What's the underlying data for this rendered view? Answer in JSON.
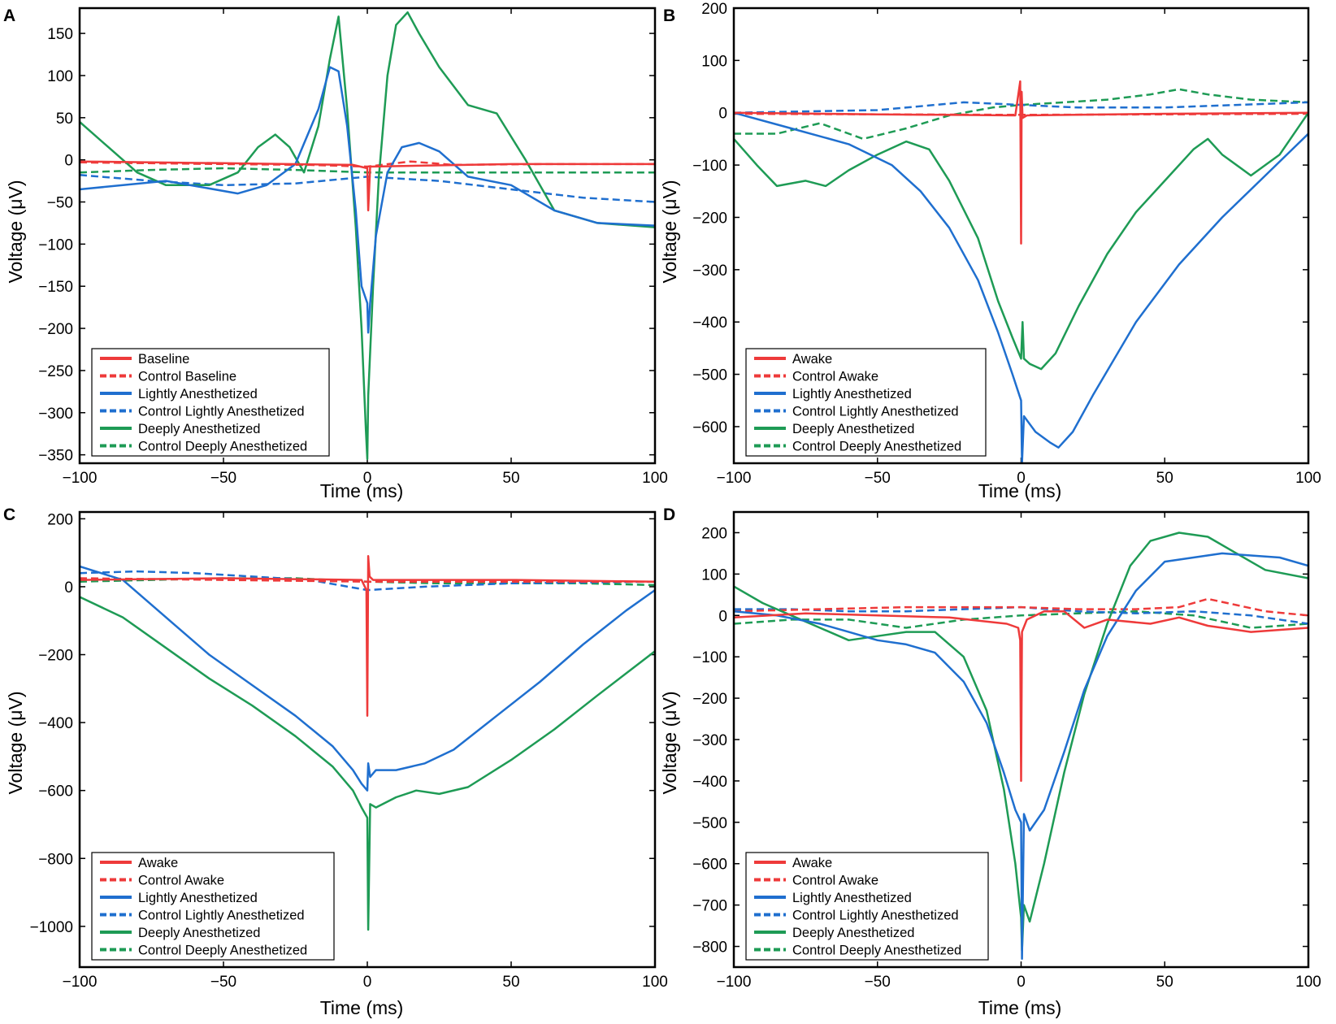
{
  "figure": {
    "colors": {
      "red": "#ee3a3a",
      "blue": "#1f6fcf",
      "green": "#1e9b55"
    },
    "style_map": {
      "Baseline": [
        "red",
        "solid"
      ],
      "Control Baseline": [
        "red",
        "dashed"
      ],
      "Awake": [
        "red",
        "solid"
      ],
      "Control Awake": [
        "red",
        "dashed"
      ],
      "Lightly Anesthetized": [
        "blue",
        "solid"
      ],
      "Control Lightly Anesthetized": [
        "blue",
        "dashed"
      ],
      "Deeply Anesthetized": [
        "green",
        "solid"
      ],
      "Control Deeply Anesthetized": [
        "green",
        "dashed"
      ]
    }
  },
  "chart_data": [
    {
      "panel": "A",
      "type": "line",
      "xlabel": "Time (ms)",
      "ylabel": "Voltage (μV)",
      "xlim": [
        -100,
        100
      ],
      "ylim": [
        -360,
        180
      ],
      "xticks": [
        -100,
        -50,
        0,
        50,
        100
      ],
      "yticks": [
        -350,
        -300,
        -250,
        -200,
        -150,
        -100,
        -50,
        0,
        50,
        100,
        150
      ],
      "legend": [
        "Baseline",
        "Control Baseline",
        "Lightly Anesthetized",
        "Control Lightly Anesthetized",
        "Deeply Anesthetized",
        "Control Deeply Anesthetized"
      ],
      "series": [
        {
          "name": "Baseline",
          "x": [
            -100,
            -50,
            -5,
            0,
            0.3,
            1,
            50,
            100
          ],
          "y": [
            -2,
            -4,
            -6,
            -10,
            -60,
            -8,
            -5,
            -5
          ]
        },
        {
          "name": "Control Baseline",
          "x": [
            -100,
            -50,
            -20,
            0,
            15,
            30,
            60,
            100
          ],
          "y": [
            -3,
            -5,
            -6,
            -8,
            -2,
            -6,
            -5,
            -5
          ]
        },
        {
          "name": "Lightly Anesthetized",
          "x": [
            -100,
            -70,
            -45,
            -35,
            -25,
            -17,
            -13,
            -10,
            -7,
            -4,
            -2,
            0,
            0.3,
            1,
            3,
            7,
            12,
            18,
            25,
            35,
            50,
            65,
            80,
            100
          ],
          "y": [
            -35,
            -25,
            -40,
            -30,
            -5,
            60,
            110,
            105,
            40,
            -60,
            -150,
            -170,
            -205,
            -170,
            -90,
            -15,
            15,
            20,
            10,
            -20,
            -30,
            -60,
            -75,
            -78
          ]
        },
        {
          "name": "Control Lightly Anesthetized",
          "x": [
            -100,
            -75,
            -50,
            -25,
            0,
            25,
            50,
            75,
            100
          ],
          "y": [
            -18,
            -25,
            -30,
            -28,
            -20,
            -25,
            -35,
            -45,
            -50
          ]
        },
        {
          "name": "Deeply Anesthetized",
          "x": [
            -100,
            -90,
            -80,
            -70,
            -55,
            -45,
            -38,
            -32,
            -27,
            -22,
            -17,
            -13,
            -10,
            -7,
            -4,
            -2,
            -0.5,
            0,
            0.3,
            2,
            4,
            7,
            10,
            14,
            18,
            25,
            35,
            45,
            55,
            65,
            80,
            100
          ],
          "y": [
            45,
            15,
            -15,
            -30,
            -30,
            -15,
            15,
            30,
            15,
            -15,
            40,
            120,
            170,
            60,
            -80,
            -200,
            -320,
            -355,
            -280,
            -150,
            -20,
            100,
            160,
            175,
            150,
            110,
            65,
            55,
            0,
            -60,
            -75,
            -80
          ]
        },
        {
          "name": "Control Deeply Anesthetized",
          "x": [
            -100,
            -75,
            -50,
            -25,
            0,
            25,
            50,
            75,
            100
          ],
          "y": [
            -15,
            -12,
            -10,
            -12,
            -15,
            -15,
            -15,
            -15,
            -15
          ]
        }
      ]
    },
    {
      "panel": "B",
      "type": "line",
      "xlabel": "Time (ms)",
      "ylabel": "Voltage (μV)",
      "xlim": [
        -100,
        100
      ],
      "ylim": [
        -670,
        200
      ],
      "xticks": [
        -100,
        -50,
        0,
        50,
        100
      ],
      "yticks": [
        -600,
        -500,
        -400,
        -300,
        -200,
        -100,
        0,
        100,
        200
      ],
      "legend": [
        "Awake",
        "Control Awake",
        "Lightly Anesthetized",
        "Control Lightly Anesthetized",
        "Deeply Anesthetized",
        "Control Deeply Anesthetized"
      ],
      "series": [
        {
          "name": "Awake",
          "x": [
            -100,
            -50,
            -2,
            -0.3,
            0,
            0.2,
            0.5,
            2,
            50,
            100
          ],
          "y": [
            0,
            -3,
            -5,
            60,
            -250,
            40,
            -10,
            -5,
            -2,
            0
          ]
        },
        {
          "name": "Control Awake",
          "x": [
            -100,
            -50,
            0,
            50,
            100
          ],
          "y": [
            -2,
            -3,
            -4,
            -3,
            -2
          ]
        },
        {
          "name": "Lightly Anesthetized",
          "x": [
            -100,
            -80,
            -60,
            -45,
            -35,
            -25,
            -15,
            -8,
            -3,
            0,
            0.3,
            1,
            5,
            10,
            13,
            18,
            25,
            40,
            55,
            70,
            85,
            100
          ],
          "y": [
            0,
            -30,
            -60,
            -100,
            -150,
            -220,
            -320,
            -420,
            -500,
            -550,
            -670,
            -580,
            -610,
            -630,
            -640,
            -610,
            -540,
            -400,
            -290,
            -200,
            -120,
            -40
          ]
        },
        {
          "name": "Control Lightly Anesthetized",
          "x": [
            -100,
            -50,
            -20,
            0,
            20,
            50,
            100
          ],
          "y": [
            0,
            5,
            20,
            15,
            10,
            10,
            20
          ]
        },
        {
          "name": "Deeply Anesthetized",
          "x": [
            -100,
            -92,
            -85,
            -75,
            -68,
            -60,
            -50,
            -40,
            -32,
            -25,
            -15,
            -8,
            -3,
            0,
            0.5,
            1,
            3,
            7,
            12,
            20,
            30,
            40,
            50,
            60,
            65,
            70,
            80,
            90,
            100
          ],
          "y": [
            -50,
            -100,
            -140,
            -130,
            -140,
            -110,
            -80,
            -55,
            -70,
            -130,
            -240,
            -360,
            -430,
            -470,
            -400,
            -470,
            -480,
            -490,
            -460,
            -370,
            -270,
            -190,
            -130,
            -70,
            -50,
            -80,
            -120,
            -80,
            0
          ]
        },
        {
          "name": "Control Deeply Anesthetized",
          "x": [
            -100,
            -85,
            -70,
            -55,
            -40,
            -25,
            -10,
            0,
            15,
            30,
            45,
            55,
            65,
            80,
            100
          ],
          "y": [
            -40,
            -40,
            -20,
            -50,
            -30,
            -5,
            10,
            15,
            20,
            25,
            35,
            45,
            35,
            25,
            20
          ]
        }
      ]
    },
    {
      "panel": "C",
      "type": "line",
      "xlabel": "Time (ms)",
      "ylabel": "Voltage (μV)",
      "xlim": [
        -100,
        100
      ],
      "ylim": [
        -1120,
        220
      ],
      "xticks": [
        -100,
        -50,
        0,
        50,
        100
      ],
      "yticks": [
        -1000,
        -800,
        -600,
        -400,
        -200,
        0,
        200
      ],
      "legend": [
        "Awake",
        "Control Awake",
        "Lightly Anesthetized",
        "Control Lightly Anesthetized",
        "Deeply Anesthetized",
        "Control Deeply Anesthetized"
      ],
      "series": [
        {
          "name": "Awake",
          "x": [
            -100,
            -50,
            -2,
            -0.3,
            0,
            0.3,
            0.8,
            2,
            50,
            100
          ],
          "y": [
            20,
            25,
            20,
            -10,
            -380,
            90,
            30,
            20,
            20,
            15
          ]
        },
        {
          "name": "Control Awake",
          "x": [
            -100,
            -50,
            0,
            50,
            100
          ],
          "y": [
            25,
            20,
            15,
            15,
            15
          ]
        },
        {
          "name": "Lightly Anesthetized",
          "x": [
            -100,
            -85,
            -70,
            -55,
            -40,
            -25,
            -12,
            -5,
            -2,
            0,
            0.3,
            1,
            3,
            10,
            20,
            30,
            45,
            60,
            75,
            90,
            100
          ],
          "y": [
            60,
            20,
            -90,
            -200,
            -290,
            -380,
            -470,
            -540,
            -580,
            -600,
            -520,
            -560,
            -540,
            -540,
            -520,
            -480,
            -380,
            -280,
            -170,
            -70,
            -10
          ]
        },
        {
          "name": "Control Lightly Anesthetized",
          "x": [
            -100,
            -80,
            -60,
            -40,
            -20,
            0,
            20,
            50,
            100
          ],
          "y": [
            40,
            45,
            40,
            30,
            20,
            -10,
            0,
            10,
            15
          ]
        },
        {
          "name": "Deeply Anesthetized",
          "x": [
            -100,
            -85,
            -70,
            -55,
            -40,
            -25,
            -12,
            -5,
            -2,
            0,
            0.3,
            1,
            3,
            10,
            17,
            25,
            35,
            50,
            65,
            80,
            100
          ],
          "y": [
            -30,
            -90,
            -180,
            -270,
            -350,
            -440,
            -530,
            -600,
            -650,
            -680,
            -1010,
            -640,
            -650,
            -620,
            -600,
            -610,
            -590,
            -510,
            -420,
            -320,
            -190
          ]
        },
        {
          "name": "Control Deeply Anesthetized",
          "x": [
            -100,
            -75,
            -50,
            -25,
            0,
            25,
            50,
            75,
            100
          ],
          "y": [
            15,
            20,
            25,
            25,
            15,
            10,
            10,
            10,
            5
          ]
        }
      ]
    },
    {
      "panel": "D",
      "type": "line",
      "xlabel": "Time (ms)",
      "ylabel": "Voltage (μV)",
      "xlim": [
        -100,
        100
      ],
      "ylim": [
        -850,
        250
      ],
      "xticks": [
        -100,
        -50,
        0,
        50,
        100
      ],
      "yticks": [
        -800,
        -700,
        -600,
        -500,
        -400,
        -300,
        -200,
        -100,
        0,
        100,
        200
      ],
      "legend": [
        "Awake",
        "Control Awake",
        "Lightly Anesthetized",
        "Control Lightly Anesthetized",
        "Deeply Anesthetized",
        "Control Deeply Anesthetized"
      ],
      "series": [
        {
          "name": "Awake",
          "x": [
            -100,
            -75,
            -50,
            -25,
            -5,
            -1,
            -0.3,
            0,
            0.3,
            2,
            8,
            15,
            22,
            30,
            45,
            55,
            65,
            80,
            100
          ],
          "y": [
            -5,
            5,
            0,
            -5,
            -20,
            -30,
            -60,
            -400,
            -40,
            -10,
            10,
            10,
            -30,
            -10,
            -20,
            -5,
            -25,
            -40,
            -30
          ]
        },
        {
          "name": "Control Awake",
          "x": [
            -100,
            -70,
            -40,
            -20,
            0,
            20,
            40,
            55,
            65,
            75,
            85,
            100
          ],
          "y": [
            10,
            15,
            20,
            20,
            20,
            15,
            15,
            20,
            40,
            25,
            10,
            0
          ]
        },
        {
          "name": "Lightly Anesthetized",
          "x": [
            -100,
            -85,
            -70,
            -60,
            -50,
            -40,
            -30,
            -20,
            -12,
            -6,
            -2,
            0,
            0.3,
            1,
            3,
            8,
            15,
            22,
            30,
            40,
            50,
            60,
            70,
            80,
            90,
            100
          ],
          "y": [
            10,
            0,
            -20,
            -40,
            -60,
            -70,
            -90,
            -160,
            -260,
            -380,
            -470,
            -500,
            -830,
            -480,
            -520,
            -470,
            -330,
            -180,
            -50,
            60,
            130,
            140,
            150,
            145,
            140,
            120
          ]
        },
        {
          "name": "Control Lightly Anesthetized",
          "x": [
            -100,
            -80,
            -60,
            -40,
            -20,
            0,
            20,
            40,
            60,
            80,
            100
          ],
          "y": [
            15,
            15,
            10,
            10,
            15,
            20,
            10,
            5,
            10,
            0,
            -20
          ]
        },
        {
          "name": "Deeply Anesthetized",
          "x": [
            -100,
            -90,
            -80,
            -70,
            -60,
            -50,
            -40,
            -30,
            -20,
            -12,
            -6,
            -2,
            0,
            0.3,
            1,
            3,
            8,
            15,
            22,
            30,
            38,
            45,
            55,
            65,
            75,
            85,
            100
          ],
          "y": [
            70,
            30,
            0,
            -30,
            -60,
            -50,
            -40,
            -40,
            -100,
            -230,
            -420,
            -600,
            -730,
            -810,
            -700,
            -740,
            -600,
            -380,
            -190,
            -20,
            120,
            180,
            200,
            190,
            150,
            110,
            90
          ]
        },
        {
          "name": "Control Deeply Anesthetized",
          "x": [
            -100,
            -80,
            -60,
            -40,
            -20,
            0,
            20,
            40,
            60,
            80,
            100
          ],
          "y": [
            -20,
            -10,
            -10,
            -30,
            -10,
            0,
            5,
            10,
            0,
            -30,
            -20
          ]
        }
      ]
    }
  ]
}
